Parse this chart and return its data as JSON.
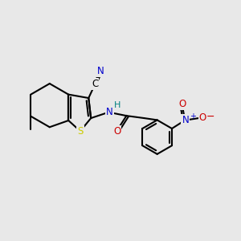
{
  "bg_color": "#e8e8e8",
  "atom_colors": {
    "C": "#000000",
    "N": "#0000cc",
    "O": "#cc0000",
    "S": "#cccc00",
    "H": "#008080"
  },
  "bond_color": "#000000",
  "figsize": [
    3.0,
    3.0
  ],
  "dpi": 100
}
